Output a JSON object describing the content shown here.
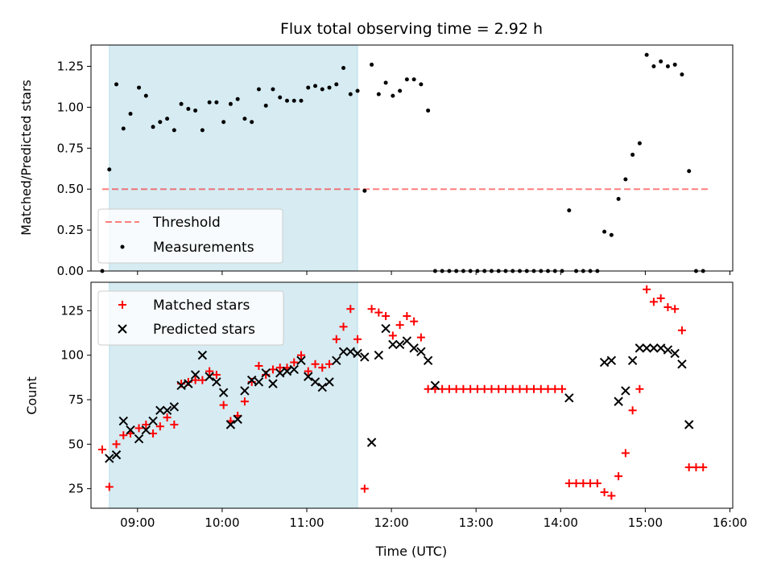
{
  "colors": {
    "shade": "#add8e6",
    "threshold": "#ff0000",
    "measurement": "#000000",
    "matched": "#ff0000",
    "predicted": "#000000"
  },
  "chart_data": [
    {
      "type": "scatter",
      "title": "Flux total observing time = 2.92 h",
      "xlabel": "",
      "ylabel": "Matched/Predicted stars",
      "xlim": [
        "08:27",
        "16:02"
      ],
      "ylim": [
        0,
        1.38
      ],
      "yticks": [
        0.0,
        0.25,
        0.5,
        0.75,
        1.0,
        1.25
      ],
      "ytick_labels": [
        "0.00",
        "0.25",
        "0.50",
        "0.75",
        "1.00",
        "1.25"
      ],
      "shaded_span": [
        "08:40",
        "11:36"
      ],
      "legend": {
        "placement": "lower-left",
        "entries": [
          "Threshold",
          "Measurements"
        ]
      },
      "series": [
        {
          "name": "Threshold",
          "style": "dashed-line",
          "points": [
            [
              "08:35",
              0.5
            ],
            [
              "15:45",
              0.5
            ]
          ]
        },
        {
          "name": "Measurements",
          "style": "dot",
          "points": [
            [
              "08:35",
              0.0
            ],
            [
              "08:40",
              0.62
            ],
            [
              "08:45",
              1.14
            ],
            [
              "08:50",
              0.87
            ],
            [
              "08:55",
              0.96
            ],
            [
              "09:01",
              1.12
            ],
            [
              "09:06",
              1.07
            ],
            [
              "09:11",
              0.88
            ],
            [
              "09:16",
              0.91
            ],
            [
              "09:21",
              0.93
            ],
            [
              "09:26",
              0.86
            ],
            [
              "09:31",
              1.02
            ],
            [
              "09:36",
              0.99
            ],
            [
              "09:41",
              0.98
            ],
            [
              "09:46",
              0.86
            ],
            [
              "09:51",
              1.03
            ],
            [
              "09:56",
              1.03
            ],
            [
              "10:01",
              0.91
            ],
            [
              "10:06",
              1.02
            ],
            [
              "10:11",
              1.05
            ],
            [
              "10:16",
              0.93
            ],
            [
              "10:21",
              0.91
            ],
            [
              "10:26",
              1.11
            ],
            [
              "10:31",
              1.01
            ],
            [
              "10:36",
              1.11
            ],
            [
              "10:41",
              1.06
            ],
            [
              "10:46",
              1.04
            ],
            [
              "10:51",
              1.04
            ],
            [
              "10:56",
              1.04
            ],
            [
              "11:01",
              1.12
            ],
            [
              "11:06",
              1.13
            ],
            [
              "11:11",
              1.11
            ],
            [
              "11:16",
              1.12
            ],
            [
              "11:21",
              1.14
            ],
            [
              "11:26",
              1.24
            ],
            [
              "11:31",
              1.08
            ],
            [
              "11:36",
              1.1
            ],
            [
              "11:41",
              0.49
            ],
            [
              "11:46",
              1.26
            ],
            [
              "11:51",
              1.08
            ],
            [
              "11:56",
              1.15
            ],
            [
              "12:01",
              1.07
            ],
            [
              "12:06",
              1.1
            ],
            [
              "12:11",
              1.17
            ],
            [
              "12:16",
              1.17
            ],
            [
              "12:21",
              1.14
            ],
            [
              "12:26",
              0.98
            ],
            [
              "12:31",
              0.0
            ],
            [
              "12:36",
              0.0
            ],
            [
              "12:41",
              0.0
            ],
            [
              "12:46",
              0.0
            ],
            [
              "12:51",
              0.0
            ],
            [
              "12:56",
              0.0
            ],
            [
              "13:01",
              0.0
            ],
            [
              "13:06",
              0.0
            ],
            [
              "13:11",
              0.0
            ],
            [
              "13:16",
              0.0
            ],
            [
              "13:21",
              0.0
            ],
            [
              "13:26",
              0.0
            ],
            [
              "13:31",
              0.0
            ],
            [
              "13:36",
              0.0
            ],
            [
              "13:41",
              0.0
            ],
            [
              "13:46",
              0.0
            ],
            [
              "13:51",
              0.0
            ],
            [
              "13:56",
              0.0
            ],
            [
              "14:01",
              0.0
            ],
            [
              "14:06",
              0.37
            ],
            [
              "14:11",
              0.0
            ],
            [
              "14:16",
              0.0
            ],
            [
              "14:21",
              0.0
            ],
            [
              "14:26",
              0.0
            ],
            [
              "14:31",
              0.24
            ],
            [
              "14:36",
              0.22
            ],
            [
              "14:41",
              0.44
            ],
            [
              "14:46",
              0.56
            ],
            [
              "14:51",
              0.71
            ],
            [
              "14:56",
              0.78
            ],
            [
              "15:01",
              1.32
            ],
            [
              "15:06",
              1.25
            ],
            [
              "15:11",
              1.28
            ],
            [
              "15:16",
              1.25
            ],
            [
              "15:21",
              1.26
            ],
            [
              "15:26",
              1.2
            ],
            [
              "15:31",
              0.61
            ],
            [
              "15:36",
              0.0
            ],
            [
              "15:41",
              0.0
            ]
          ]
        }
      ]
    },
    {
      "type": "scatter",
      "title": "",
      "xlabel": "Time (UTC)",
      "ylabel": "Count",
      "xlim": [
        "08:27",
        "16:02"
      ],
      "ylim": [
        14,
        141
      ],
      "yticks": [
        25,
        50,
        75,
        100,
        125
      ],
      "ytick_labels": [
        "25",
        "50",
        "75",
        "100",
        "125"
      ],
      "xticks": [
        "09:00",
        "10:00",
        "11:00",
        "12:00",
        "13:00",
        "14:00",
        "15:00",
        "16:00"
      ],
      "xtick_labels": [
        "09:00",
        "10:00",
        "11:00",
        "12:00",
        "13:00",
        "14:00",
        "15:00",
        "16:00"
      ],
      "shaded_span": [
        "08:40",
        "11:36"
      ],
      "legend": {
        "placement": "upper-left",
        "entries": [
          "Matched stars",
          "Predicted stars"
        ]
      },
      "series": [
        {
          "name": "Matched stars",
          "style": "plus",
          "points": [
            [
              "08:35",
              47
            ],
            [
              "08:40",
              26
            ],
            [
              "08:45",
              50
            ],
            [
              "08:50",
              55
            ],
            [
              "08:55",
              56
            ],
            [
              "09:01",
              59
            ],
            [
              "09:06",
              61
            ],
            [
              "09:11",
              56
            ],
            [
              "09:16",
              60
            ],
            [
              "09:21",
              65
            ],
            [
              "09:26",
              61
            ],
            [
              "09:31",
              84
            ],
            [
              "09:36",
              85
            ],
            [
              "09:41",
              86
            ],
            [
              "09:46",
              86
            ],
            [
              "09:51",
              91
            ],
            [
              "09:56",
              89
            ],
            [
              "10:01",
              72
            ],
            [
              "10:06",
              63
            ],
            [
              "10:11",
              66
            ],
            [
              "10:16",
              74
            ],
            [
              "10:21",
              85
            ],
            [
              "10:26",
              94
            ],
            [
              "10:31",
              89
            ],
            [
              "10:36",
              92
            ],
            [
              "10:41",
              93
            ],
            [
              "10:46",
              93
            ],
            [
              "10:51",
              96
            ],
            [
              "10:56",
              100
            ],
            [
              "11:01",
              91
            ],
            [
              "11:06",
              95
            ],
            [
              "11:11",
              93
            ],
            [
              "11:16",
              95
            ],
            [
              "11:21",
              109
            ],
            [
              "11:26",
              116
            ],
            [
              "11:31",
              126
            ],
            [
              "11:36",
              109
            ],
            [
              "11:41",
              25
            ],
            [
              "11:46",
              126
            ],
            [
              "11:51",
              124
            ],
            [
              "11:56",
              122
            ],
            [
              "12:01",
              111
            ],
            [
              "12:06",
              117
            ],
            [
              "12:11",
              122
            ],
            [
              "12:16",
              119
            ],
            [
              "12:21",
              110
            ],
            [
              "12:26",
              81
            ],
            [
              "12:31",
              81
            ],
            [
              "12:36",
              81
            ],
            [
              "12:41",
              81
            ],
            [
              "12:46",
              81
            ],
            [
              "12:51",
              81
            ],
            [
              "12:56",
              81
            ],
            [
              "13:01",
              81
            ],
            [
              "13:06",
              81
            ],
            [
              "13:11",
              81
            ],
            [
              "13:16",
              81
            ],
            [
              "13:21",
              81
            ],
            [
              "13:26",
              81
            ],
            [
              "13:31",
              81
            ],
            [
              "13:36",
              81
            ],
            [
              "13:41",
              81
            ],
            [
              "13:46",
              81
            ],
            [
              "13:51",
              81
            ],
            [
              "13:56",
              81
            ],
            [
              "14:01",
              81
            ],
            [
              "14:06",
              28
            ],
            [
              "14:11",
              28
            ],
            [
              "14:16",
              28
            ],
            [
              "14:21",
              28
            ],
            [
              "14:26",
              28
            ],
            [
              "14:31",
              23
            ],
            [
              "14:36",
              21
            ],
            [
              "14:41",
              32
            ],
            [
              "14:46",
              45
            ],
            [
              "14:51",
              69
            ],
            [
              "14:56",
              81
            ],
            [
              "15:01",
              137
            ],
            [
              "15:06",
              130
            ],
            [
              "15:11",
              132
            ],
            [
              "15:16",
              127
            ],
            [
              "15:21",
              126
            ],
            [
              "15:26",
              114
            ],
            [
              "15:31",
              37
            ],
            [
              "15:36",
              37
            ],
            [
              "15:41",
              37
            ]
          ]
        },
        {
          "name": "Predicted stars",
          "style": "x",
          "points": [
            [
              "08:40",
              42
            ],
            [
              "08:45",
              44
            ],
            [
              "08:50",
              63
            ],
            [
              "08:55",
              58
            ],
            [
              "09:01",
              53
            ],
            [
              "09:06",
              58
            ],
            [
              "09:11",
              63
            ],
            [
              "09:16",
              69
            ],
            [
              "09:21",
              69
            ],
            [
              "09:26",
              71
            ],
            [
              "09:31",
              83
            ],
            [
              "09:36",
              84
            ],
            [
              "09:41",
              89
            ],
            [
              "09:46",
              100
            ],
            [
              "09:51",
              88
            ],
            [
              "09:56",
              85
            ],
            [
              "10:01",
              79
            ],
            [
              "10:06",
              61
            ],
            [
              "10:11",
              64
            ],
            [
              "10:16",
              80
            ],
            [
              "10:21",
              86
            ],
            [
              "10:26",
              85
            ],
            [
              "10:31",
              90
            ],
            [
              "10:36",
              84
            ],
            [
              "10:41",
              90
            ],
            [
              "10:46",
              91
            ],
            [
              "10:51",
              92
            ],
            [
              "10:56",
              97
            ],
            [
              "11:01",
              88
            ],
            [
              "11:06",
              85
            ],
            [
              "11:11",
              82
            ],
            [
              "11:16",
              85
            ],
            [
              "11:21",
              97
            ],
            [
              "11:26",
              102
            ],
            [
              "11:31",
              102
            ],
            [
              "11:36",
              101
            ],
            [
              "11:41",
              99
            ],
            [
              "11:46",
              51
            ],
            [
              "11:51",
              100
            ],
            [
              "11:56",
              115
            ],
            [
              "12:01",
              106
            ],
            [
              "12:06",
              106
            ],
            [
              "12:11",
              108
            ],
            [
              "12:16",
              104
            ],
            [
              "12:21",
              102
            ],
            [
              "12:26",
              97
            ],
            [
              "12:31",
              83
            ],
            [
              "14:06",
              76
            ],
            [
              "14:31",
              96
            ],
            [
              "14:36",
              97
            ],
            [
              "14:41",
              74
            ],
            [
              "14:46",
              80
            ],
            [
              "14:51",
              97
            ],
            [
              "14:56",
              104
            ],
            [
              "15:01",
              104
            ],
            [
              "15:06",
              104
            ],
            [
              "15:11",
              104
            ],
            [
              "15:16",
              103
            ],
            [
              "15:21",
              101
            ],
            [
              "15:26",
              95
            ],
            [
              "15:31",
              61
            ]
          ]
        }
      ]
    }
  ]
}
